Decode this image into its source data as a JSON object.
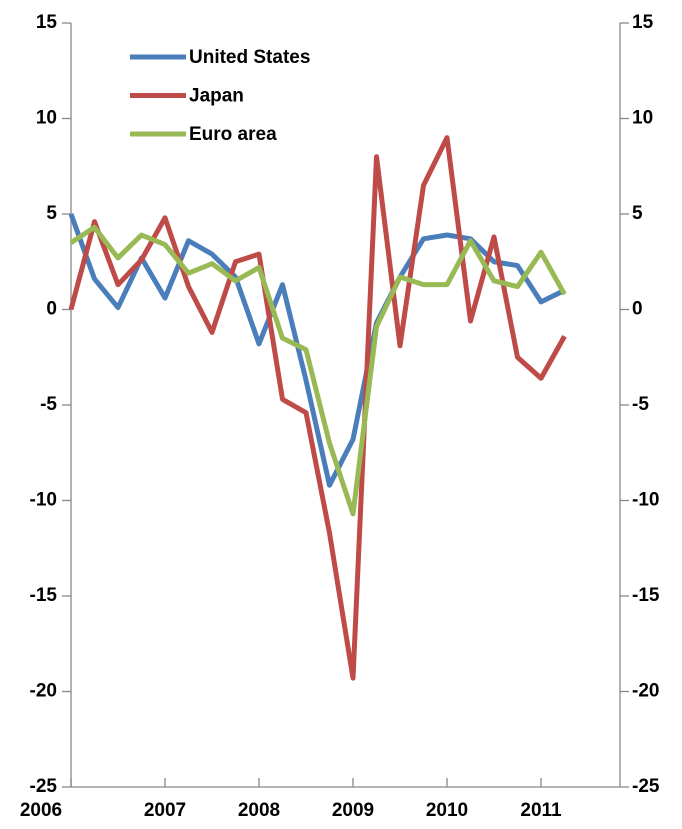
{
  "chart_data": {
    "type": "line",
    "categories": [
      "2006",
      null,
      null,
      null,
      "2007",
      null,
      null,
      null,
      "2008",
      null,
      null,
      null,
      "2009",
      null,
      null,
      null,
      "2010",
      null,
      null,
      null,
      "2011",
      null
    ],
    "series": [
      {
        "name": "United States",
        "color": "#4a7ebb",
        "values": [
          5.0,
          1.6,
          0.1,
          2.7,
          0.6,
          3.6,
          2.9,
          1.7,
          -1.8,
          1.3,
          -3.7,
          -9.2,
          -6.8,
          -0.7,
          1.7,
          3.7,
          3.9,
          3.7,
          2.5,
          2.3,
          0.4,
          1.0
        ]
      },
      {
        "name": "Japan",
        "color": "#be4b48",
        "values": [
          0.0,
          4.6,
          1.3,
          2.6,
          4.8,
          1.2,
          -1.2,
          2.5,
          2.9,
          -4.7,
          -5.4,
          -11.7,
          -19.3,
          8.0,
          -1.9,
          6.5,
          9.0,
          -0.6,
          3.8,
          -2.5,
          -3.6,
          -1.4
        ]
      },
      {
        "name": "Euro area",
        "color": "#98b954",
        "values": [
          3.5,
          4.3,
          2.7,
          3.9,
          3.4,
          1.9,
          2.4,
          1.5,
          2.2,
          -1.5,
          -2.1,
          -7.0,
          -10.7,
          -0.9,
          1.7,
          1.3,
          1.3,
          3.6,
          1.5,
          1.2,
          3.0,
          0.8
        ]
      }
    ],
    "ylim": [
      -25,
      15
    ],
    "yticks": [
      -25,
      -20,
      -15,
      -10,
      -5,
      0,
      5,
      10,
      15
    ],
    "y2lim": [
      -25,
      15
    ],
    "y2ticks": [
      -25,
      -20,
      -15,
      -10,
      -5,
      0,
      5,
      10,
      15
    ],
    "legend": "upper left"
  }
}
